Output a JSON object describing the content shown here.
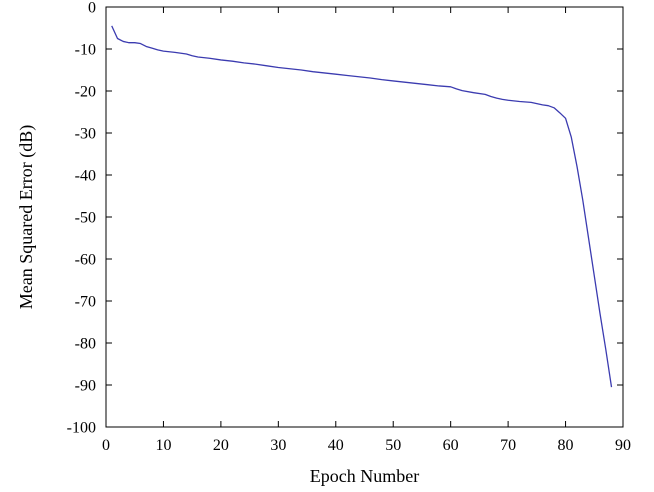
{
  "chart_data": {
    "type": "line",
    "title": "",
    "xlabel": "Epoch Number",
    "ylabel": "Mean Squared Error (dB)",
    "xlim": [
      0,
      90
    ],
    "ylim": [
      -100,
      0
    ],
    "xticks": [
      0,
      10,
      20,
      30,
      40,
      50,
      60,
      70,
      80,
      90
    ],
    "yticks": [
      0,
      -10,
      -20,
      -30,
      -40,
      -50,
      -60,
      -70,
      -80,
      -90,
      -100
    ],
    "grid": false,
    "legend": "none",
    "colors": {
      "series": "#3b3bb0",
      "axes": "#000000"
    },
    "series": [
      {
        "x": [
          1,
          2,
          3,
          4,
          5,
          6,
          7,
          8,
          9,
          10,
          12,
          14,
          15,
          16,
          18,
          20,
          22,
          24,
          26,
          28,
          30,
          32,
          34,
          36,
          38,
          40,
          42,
          44,
          46,
          48,
          50,
          52,
          54,
          56,
          58,
          60,
          61,
          62,
          64,
          66,
          67,
          68,
          69,
          70,
          72,
          74,
          75,
          76,
          77,
          78,
          79,
          80,
          81,
          82,
          83,
          84,
          85,
          86,
          87,
          88
        ],
        "y": [
          -4.5,
          -7.5,
          -8.2,
          -8.5,
          -8.5,
          -8.7,
          -9.4,
          -9.8,
          -10.2,
          -10.5,
          -10.8,
          -11.2,
          -11.6,
          -11.9,
          -12.2,
          -12.6,
          -12.9,
          -13.3,
          -13.6,
          -14.0,
          -14.4,
          -14.7,
          -15.0,
          -15.4,
          -15.7,
          -16.0,
          -16.3,
          -16.6,
          -16.9,
          -17.3,
          -17.6,
          -17.9,
          -18.2,
          -18.5,
          -18.8,
          -19.0,
          -19.5,
          -19.9,
          -20.4,
          -20.8,
          -21.3,
          -21.7,
          -22.0,
          -22.2,
          -22.5,
          -22.7,
          -23.0,
          -23.3,
          -23.5,
          -24.0,
          -25.2,
          -26.5,
          -31.0,
          -38.0,
          -46.0,
          -55.0,
          -64.0,
          -73.0,
          -81.5,
          -90.5
        ]
      }
    ]
  }
}
